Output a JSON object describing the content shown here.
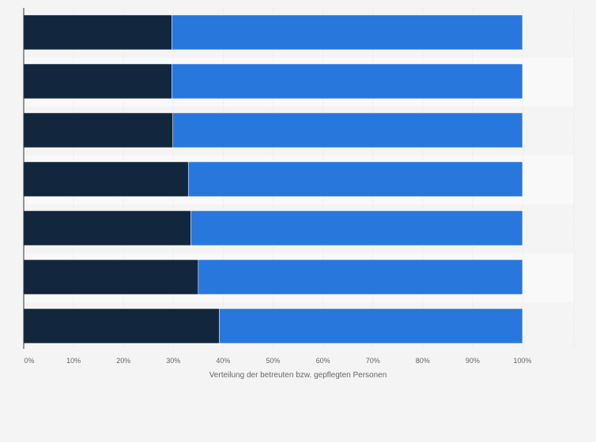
{
  "chart_data": {
    "type": "bar",
    "orientation": "horizontal",
    "stacked": true,
    "title": "",
    "xlabel": "Verteilung der betreuten bzw. gepflegten Personen",
    "ylabel": "",
    "xlim": [
      0,
      100
    ],
    "x_ticks": [
      "0%",
      "10%",
      "20%",
      "30%",
      "40%",
      "50%",
      "60%",
      "70%",
      "80%",
      "90%",
      "100%"
    ],
    "categories": [
      "",
      "",
      "",
      "",
      "",
      "",
      ""
    ],
    "series": [
      {
        "color": "#12263d",
        "values": [
          29.7,
          29.7,
          29.9,
          33.0,
          33.5,
          35.0,
          39.2
        ]
      },
      {
        "color": "#2877dd",
        "values": [
          70.3,
          70.3,
          70.1,
          67.0,
          66.5,
          65.0,
          60.8
        ]
      }
    ],
    "grid": true,
    "legend": "none"
  }
}
